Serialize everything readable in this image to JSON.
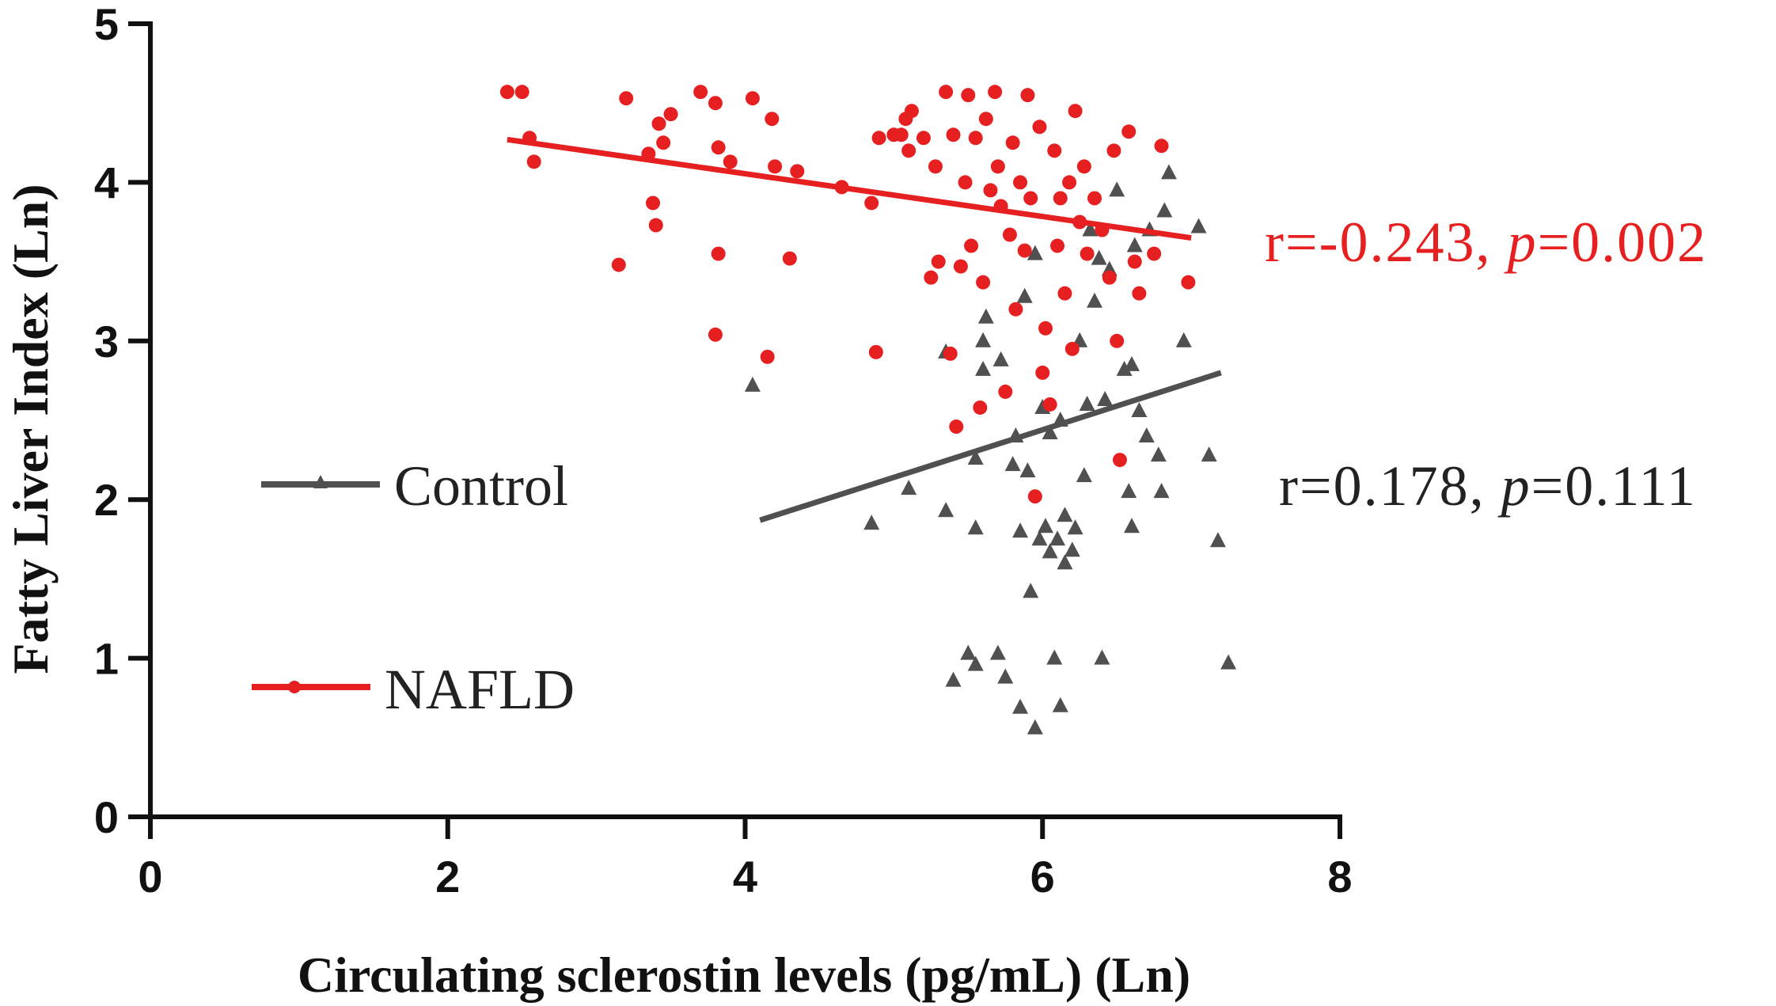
{
  "chart_data": {
    "type": "scatter",
    "xlabel": "Circulating sclerostin levels (pg/mL) (Ln)",
    "ylabel": "Fatty Liver Index (Ln)",
    "xlim": [
      0,
      8
    ],
    "ylim": [
      0,
      5
    ],
    "xticks": [
      "0",
      "2",
      "4",
      "6",
      "8"
    ],
    "yticks": [
      "0",
      "1",
      "2",
      "3",
      "4",
      "5"
    ],
    "grid": false,
    "series": [
      {
        "name": "Control",
        "color": "#505050",
        "marker": "triangle",
        "fit_line": {
          "x": [
            4.1,
            7.2
          ],
          "y": [
            1.87,
            2.8
          ]
        },
        "annotation": {
          "r_text": "r=0.178, ",
          "p_label": "p",
          "p_text": "=0.111"
        },
        "points": [
          [
            4.05,
            2.72
          ],
          [
            4.85,
            1.85
          ],
          [
            5.1,
            2.07
          ],
          [
            5.35,
            1.93
          ],
          [
            5.35,
            2.93
          ],
          [
            5.4,
            0.86
          ],
          [
            5.5,
            1.03
          ],
          [
            5.55,
            0.96
          ],
          [
            5.55,
            1.82
          ],
          [
            5.55,
            2.26
          ],
          [
            5.6,
            2.82
          ],
          [
            5.6,
            3.0
          ],
          [
            5.62,
            3.15
          ],
          [
            5.7,
            1.03
          ],
          [
            5.72,
            2.88
          ],
          [
            5.75,
            0.88
          ],
          [
            5.8,
            2.22
          ],
          [
            5.82,
            2.4
          ],
          [
            5.85,
            1.8
          ],
          [
            5.85,
            0.69
          ],
          [
            5.88,
            3.28
          ],
          [
            5.9,
            2.18
          ],
          [
            5.92,
            1.42
          ],
          [
            5.95,
            0.56
          ],
          [
            5.95,
            3.55
          ],
          [
            5.98,
            1.75
          ],
          [
            6.0,
            2.58
          ],
          [
            6.02,
            1.83
          ],
          [
            6.05,
            1.67
          ],
          [
            6.05,
            2.42
          ],
          [
            6.08,
            1.0
          ],
          [
            6.1,
            1.75
          ],
          [
            6.12,
            2.5
          ],
          [
            6.12,
            0.7
          ],
          [
            6.15,
            1.6
          ],
          [
            6.15,
            1.9
          ],
          [
            6.2,
            1.68
          ],
          [
            6.22,
            1.82
          ],
          [
            6.25,
            3.0
          ],
          [
            6.28,
            2.15
          ],
          [
            6.3,
            2.6
          ],
          [
            6.32,
            3.7
          ],
          [
            6.35,
            3.25
          ],
          [
            6.38,
            3.52
          ],
          [
            6.4,
            1.0
          ],
          [
            6.42,
            2.63
          ],
          [
            6.45,
            3.45
          ],
          [
            6.5,
            3.95
          ],
          [
            6.55,
            2.82
          ],
          [
            6.58,
            2.05
          ],
          [
            6.6,
            1.83
          ],
          [
            6.6,
            2.85
          ],
          [
            6.62,
            3.6
          ],
          [
            6.65,
            2.56
          ],
          [
            6.7,
            2.4
          ],
          [
            6.72,
            3.7
          ],
          [
            6.78,
            2.28
          ],
          [
            6.8,
            2.05
          ],
          [
            6.82,
            3.82
          ],
          [
            6.85,
            4.06
          ],
          [
            6.95,
            3.0
          ],
          [
            7.05,
            3.72
          ],
          [
            7.12,
            2.28
          ],
          [
            7.18,
            1.74
          ],
          [
            7.25,
            0.97
          ]
        ]
      },
      {
        "name": "NAFLD",
        "color": "#e62020",
        "marker": "circle",
        "fit_line": {
          "x": [
            2.4,
            7.0
          ],
          "y": [
            4.27,
            3.65
          ]
        },
        "annotation": {
          "r_text": "r=-0.243, ",
          "p_label": "p",
          "p_text": "=0.002"
        },
        "points": [
          [
            2.4,
            4.57
          ],
          [
            2.5,
            4.57
          ],
          [
            2.55,
            4.28
          ],
          [
            2.58,
            4.13
          ],
          [
            3.15,
            3.48
          ],
          [
            3.2,
            4.53
          ],
          [
            3.35,
            4.18
          ],
          [
            3.38,
            3.87
          ],
          [
            3.4,
            3.73
          ],
          [
            3.42,
            4.37
          ],
          [
            3.45,
            4.25
          ],
          [
            3.5,
            4.43
          ],
          [
            3.7,
            4.57
          ],
          [
            3.8,
            4.5
          ],
          [
            3.8,
            3.04
          ],
          [
            3.82,
            3.55
          ],
          [
            3.82,
            4.22
          ],
          [
            3.9,
            4.13
          ],
          [
            4.05,
            4.53
          ],
          [
            4.15,
            2.9
          ],
          [
            4.18,
            4.4
          ],
          [
            4.2,
            4.1
          ],
          [
            4.3,
            3.52
          ],
          [
            4.35,
            4.07
          ],
          [
            4.65,
            3.97
          ],
          [
            4.85,
            3.87
          ],
          [
            4.88,
            2.93
          ],
          [
            4.9,
            4.28
          ],
          [
            5.0,
            4.3
          ],
          [
            5.05,
            4.3
          ],
          [
            5.08,
            4.4
          ],
          [
            5.1,
            4.2
          ],
          [
            5.12,
            4.45
          ],
          [
            5.2,
            4.28
          ],
          [
            5.25,
            3.4
          ],
          [
            5.28,
            4.1
          ],
          [
            5.3,
            3.5
          ],
          [
            5.35,
            4.57
          ],
          [
            5.38,
            2.92
          ],
          [
            5.4,
            4.3
          ],
          [
            5.42,
            2.46
          ],
          [
            5.45,
            3.47
          ],
          [
            5.48,
            4.0
          ],
          [
            5.5,
            4.55
          ],
          [
            5.52,
            3.6
          ],
          [
            5.55,
            4.28
          ],
          [
            5.58,
            2.58
          ],
          [
            5.6,
            3.37
          ],
          [
            5.62,
            4.4
          ],
          [
            5.65,
            3.95
          ],
          [
            5.68,
            4.57
          ],
          [
            5.7,
            4.1
          ],
          [
            5.72,
            3.85
          ],
          [
            5.75,
            2.68
          ],
          [
            5.78,
            3.67
          ],
          [
            5.8,
            4.25
          ],
          [
            5.82,
            3.2
          ],
          [
            5.85,
            4.0
          ],
          [
            5.88,
            3.57
          ],
          [
            5.9,
            4.55
          ],
          [
            5.92,
            3.9
          ],
          [
            5.95,
            2.02
          ],
          [
            5.98,
            4.35
          ],
          [
            6.0,
            2.8
          ],
          [
            6.02,
            3.08
          ],
          [
            6.05,
            2.6
          ],
          [
            6.08,
            4.2
          ],
          [
            6.1,
            3.6
          ],
          [
            6.12,
            3.9
          ],
          [
            6.15,
            3.3
          ],
          [
            6.18,
            4.0
          ],
          [
            6.2,
            2.95
          ],
          [
            6.22,
            4.45
          ],
          [
            6.25,
            3.75
          ],
          [
            6.28,
            4.1
          ],
          [
            6.3,
            3.55
          ],
          [
            6.35,
            3.9
          ],
          [
            6.4,
            3.7
          ],
          [
            6.45,
            3.4
          ],
          [
            6.48,
            4.2
          ],
          [
            6.5,
            3.0
          ],
          [
            6.52,
            2.25
          ],
          [
            6.58,
            4.32
          ],
          [
            6.62,
            3.5
          ],
          [
            6.65,
            3.3
          ],
          [
            6.75,
            3.55
          ],
          [
            6.8,
            4.23
          ],
          [
            6.98,
            3.37
          ]
        ]
      }
    ]
  }
}
